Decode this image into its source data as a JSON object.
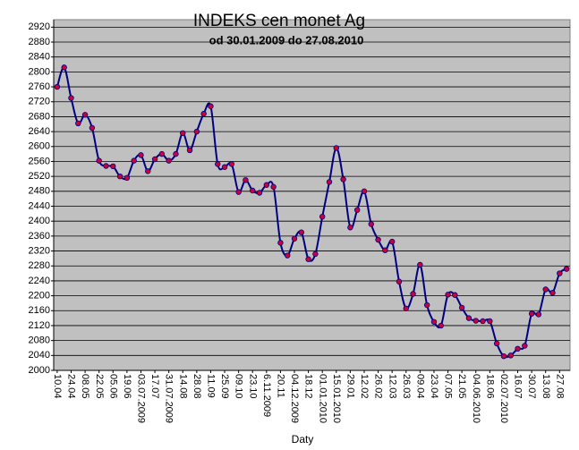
{
  "chart_data": {
    "type": "line",
    "title": "INDEKS cen monet Ag",
    "subtitle": "od 30.01.2009 do 27.08.2010",
    "x_label": "Daty",
    "categories": [
      "10.04",
      null,
      "24.04",
      null,
      "08.05",
      null,
      "22.05",
      null,
      "05.06",
      null,
      "19.06",
      null,
      "03.07.2009",
      null,
      "17.07",
      null,
      "31.07.2009",
      null,
      "14.08",
      null,
      "28.08",
      null,
      "11.09",
      null,
      "25.09",
      null,
      "09.10",
      null,
      "23.10",
      null,
      "6.11.2009",
      null,
      "20.11",
      null,
      "04.12.2009",
      null,
      "18.12",
      null,
      "01.01.2010",
      null,
      "15.01.2010",
      null,
      "29.01",
      null,
      "12.02",
      null,
      "26.02",
      null,
      "12.03",
      null,
      "26.03",
      null,
      "09.04",
      null,
      "23.04",
      null,
      "07.05",
      null,
      "21.05",
      null,
      "04.06.2010",
      null,
      "18.06",
      null,
      "02.07.2010",
      null,
      "16.07",
      null,
      "30.07",
      null,
      "13.08",
      null,
      "27.08",
      null
    ],
    "series": [
      {
        "name": "INDEKS",
        "color": "#000080",
        "marker_color": "#c8003c",
        "values": [
          2760,
          2812,
          2730,
          2662,
          2685,
          2650,
          2562,
          2548,
          2547,
          2520,
          2516,
          2562,
          2577,
          2534,
          2566,
          2580,
          2562,
          2580,
          2636,
          2590,
          2640,
          2688,
          2708,
          2553,
          2545,
          2553,
          2478,
          2510,
          2482,
          2476,
          2497,
          2492,
          2342,
          2308,
          2353,
          2370,
          2298,
          2312,
          2412,
          2505,
          2596,
          2512,
          2383,
          2430,
          2480,
          2392,
          2350,
          2322,
          2345,
          2238,
          2166,
          2205,
          2283,
          2175,
          2130,
          2120,
          2203,
          2202,
          2168,
          2140,
          2133,
          2132,
          2132,
          2072,
          2038,
          2040,
          2058,
          2066,
          2152,
          2150,
          2217,
          2208,
          2260,
          2272
        ]
      }
    ],
    "ylim": [
      2000,
      2940
    ],
    "yticks": [
      2000,
      2040,
      2080,
      2120,
      2160,
      2200,
      2240,
      2280,
      2320,
      2360,
      2400,
      2440,
      2480,
      2520,
      2560,
      2600,
      2640,
      2680,
      2720,
      2760,
      2800,
      2840,
      2880,
      2920
    ],
    "grid": true,
    "plot_background": "#c0c0c0"
  }
}
